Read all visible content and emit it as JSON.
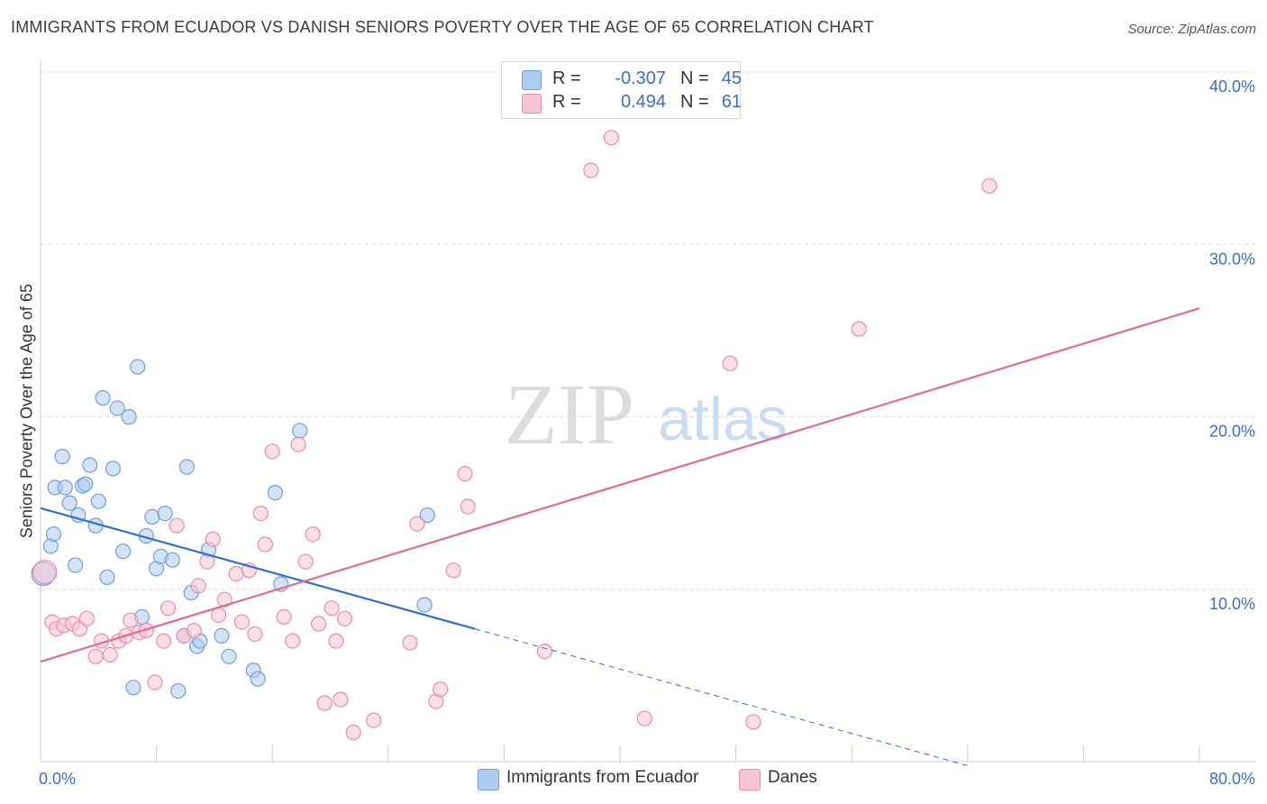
{
  "header": {
    "title": "IMMIGRANTS FROM ECUADOR VS DANISH SENIORS POVERTY OVER THE AGE OF 65 CORRELATION CHART",
    "source": "Source: ZipAtlas.com"
  },
  "watermark": {
    "zip": "ZIP",
    "atlas": "atlas"
  },
  "legend": {
    "rows": [
      {
        "r_label": "R =",
        "r_value": "-0.307",
        "n_label": "N =",
        "n_value": "45",
        "color": "#aecbf0",
        "border": "#6f9fdb"
      },
      {
        "r_label": "R =",
        "r_value": "0.494",
        "n_label": "N =",
        "n_value": "61",
        "color": "#f7c4d3",
        "border": "#e88eab"
      }
    ]
  },
  "bottom_legend": [
    {
      "label": "Immigrants from Ecuador",
      "color": "#aecbf0",
      "border": "#6f9fdb"
    },
    {
      "label": "Danes",
      "color": "#f7c4d3",
      "border": "#e88eab"
    }
  ],
  "chart_data": {
    "type": "scatter",
    "title": "IMMIGRANTS FROM ECUADOR VS DANISH SENIORS POVERTY OVER THE AGE OF 65 CORRELATION CHART",
    "xlabel": "",
    "ylabel": "Seniors Poverty Over the Age of 65",
    "xlim": [
      0,
      80
    ],
    "ylim": [
      0,
      40
    ],
    "x_tick_labels": [
      "0.0%",
      "80.0%"
    ],
    "y_ticks": [
      10,
      20,
      30,
      40
    ],
    "y_tick_labels": [
      "10.0%",
      "20.0%",
      "30.0%",
      "40.0%"
    ],
    "grid": true,
    "legend_position": "top-center",
    "series": [
      {
        "name": "Immigrants from Ecuador",
        "color": "#6f9fdb",
        "fill": "#aecbf0",
        "trend": {
          "x": [
            0,
            30
          ],
          "y": [
            14.7,
            7.7
          ],
          "extend_to_x": 64,
          "color": "#2f6fcf"
        },
        "points": [
          [
            0.2,
            10.9
          ],
          [
            0.7,
            12.5
          ],
          [
            0.9,
            13.2
          ],
          [
            1.0,
            15.9
          ],
          [
            1.5,
            17.7
          ],
          [
            1.7,
            15.9
          ],
          [
            2.0,
            15.0
          ],
          [
            2.4,
            11.4
          ],
          [
            2.6,
            14.3
          ],
          [
            2.9,
            16.0
          ],
          [
            3.1,
            16.1
          ],
          [
            3.4,
            17.2
          ],
          [
            3.8,
            13.7
          ],
          [
            4.0,
            15.1
          ],
          [
            4.3,
            21.1
          ],
          [
            4.6,
            10.7
          ],
          [
            5.0,
            17.0
          ],
          [
            5.3,
            20.5
          ],
          [
            5.7,
            12.2
          ],
          [
            6.1,
            20.0
          ],
          [
            6.4,
            4.3
          ],
          [
            6.7,
            22.9
          ],
          [
            7.0,
            8.4
          ],
          [
            7.3,
            13.1
          ],
          [
            7.7,
            14.2
          ],
          [
            8.0,
            11.2
          ],
          [
            8.3,
            11.9
          ],
          [
            8.6,
            14.4
          ],
          [
            9.1,
            11.7
          ],
          [
            9.5,
            4.1
          ],
          [
            9.9,
            7.3
          ],
          [
            10.1,
            17.1
          ],
          [
            10.4,
            9.8
          ],
          [
            10.8,
            6.7
          ],
          [
            11.0,
            7.0
          ],
          [
            11.6,
            12.3
          ],
          [
            12.5,
            7.3
          ],
          [
            13.0,
            6.1
          ],
          [
            14.7,
            5.3
          ],
          [
            15.0,
            4.8
          ],
          [
            16.2,
            15.6
          ],
          [
            16.6,
            10.3
          ],
          [
            17.9,
            19.2
          ],
          [
            26.5,
            9.1
          ],
          [
            26.7,
            14.3
          ]
        ]
      },
      {
        "name": "Danes",
        "color": "#e88eab",
        "fill": "#f7c4d3",
        "trend": {
          "x": [
            0,
            80
          ],
          "y": [
            5.8,
            26.3
          ],
          "color": "#e06b93"
        },
        "points": [
          [
            0.3,
            11.0
          ],
          [
            0.8,
            8.1
          ],
          [
            1.1,
            7.7
          ],
          [
            1.6,
            7.9
          ],
          [
            2.2,
            8.0
          ],
          [
            2.7,
            7.7
          ],
          [
            3.2,
            8.3
          ],
          [
            3.8,
            6.1
          ],
          [
            4.2,
            7.0
          ],
          [
            4.8,
            6.2
          ],
          [
            5.4,
            7.0
          ],
          [
            5.9,
            7.3
          ],
          [
            6.2,
            8.2
          ],
          [
            6.8,
            7.5
          ],
          [
            7.3,
            7.6
          ],
          [
            7.9,
            4.6
          ],
          [
            8.5,
            7.0
          ],
          [
            8.8,
            8.9
          ],
          [
            9.4,
            13.7
          ],
          [
            9.9,
            7.3
          ],
          [
            10.6,
            7.6
          ],
          [
            10.9,
            10.2
          ],
          [
            11.5,
            11.6
          ],
          [
            11.9,
            12.9
          ],
          [
            12.3,
            8.5
          ],
          [
            12.7,
            9.4
          ],
          [
            13.5,
            10.9
          ],
          [
            13.9,
            8.1
          ],
          [
            14.4,
            11.1
          ],
          [
            14.8,
            7.4
          ],
          [
            15.2,
            14.4
          ],
          [
            15.5,
            12.6
          ],
          [
            16.0,
            18.0
          ],
          [
            16.8,
            8.4
          ],
          [
            17.4,
            7.0
          ],
          [
            17.8,
            18.4
          ],
          [
            18.3,
            11.6
          ],
          [
            18.8,
            13.2
          ],
          [
            19.2,
            8.0
          ],
          [
            19.6,
            3.4
          ],
          [
            20.1,
            8.9
          ],
          [
            20.4,
            7.0
          ],
          [
            20.7,
            3.6
          ],
          [
            21.0,
            8.3
          ],
          [
            21.6,
            1.7
          ],
          [
            23.0,
            2.4
          ],
          [
            25.5,
            6.9
          ],
          [
            26.0,
            13.8
          ],
          [
            27.3,
            3.5
          ],
          [
            27.6,
            4.2
          ],
          [
            28.5,
            11.1
          ],
          [
            29.3,
            16.7
          ],
          [
            29.5,
            14.8
          ],
          [
            34.8,
            6.4
          ],
          [
            38.0,
            34.3
          ],
          [
            39.4,
            36.2
          ],
          [
            41.7,
            2.5
          ],
          [
            47.6,
            23.1
          ],
          [
            49.2,
            2.3
          ],
          [
            56.5,
            25.1
          ],
          [
            65.5,
            33.4
          ]
        ]
      }
    ]
  }
}
